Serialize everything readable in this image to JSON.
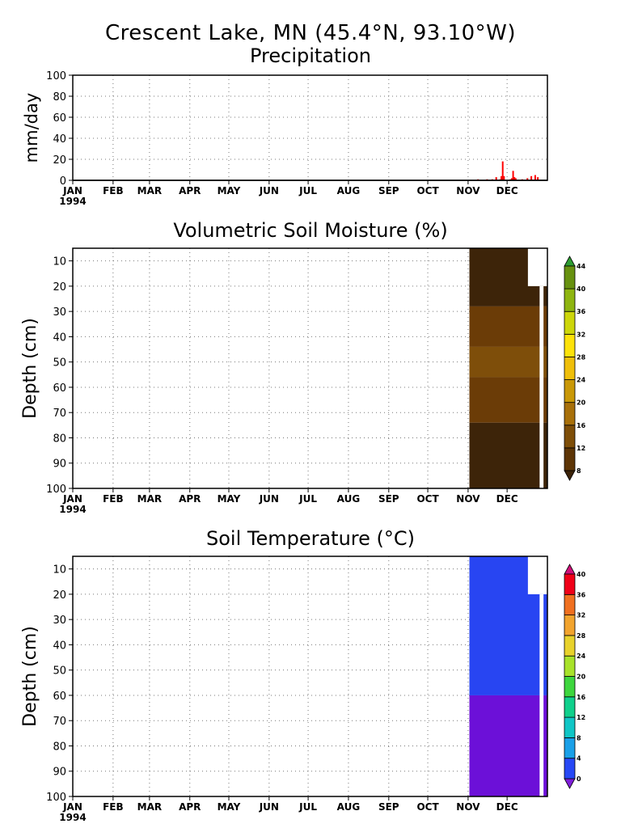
{
  "header": {
    "title": "Crescent Lake, MN (45.4°N, 93.10°W)",
    "subtitle": "Precipitation"
  },
  "months": [
    "JAN",
    "FEB",
    "MAR",
    "APR",
    "MAY",
    "JUN",
    "JUL",
    "AUG",
    "SEP",
    "OCT",
    "NOV",
    "DEC"
  ],
  "year_label": "1994",
  "chart_data": [
    {
      "type": "bar",
      "title": "Precipitation",
      "ylabel": "mm/day",
      "xlabel": "",
      "ylim": [
        0,
        100
      ],
      "yticks": [
        0,
        20,
        40,
        60,
        80,
        100
      ],
      "bar_color": "#ff0000",
      "grid": true,
      "x_day": [
        311,
        318,
        322,
        325,
        328,
        329,
        330,
        331,
        336,
        337,
        338,
        339,
        340,
        345,
        349,
        352,
        355,
        357
      ],
      "values": [
        1,
        1,
        1,
        3,
        1,
        4,
        18,
        4,
        1,
        2,
        9,
        3,
        2,
        1,
        2,
        4,
        5,
        3
      ]
    },
    {
      "type": "heatmap",
      "title": "Volumetric Soil Moisture (%)",
      "ylabel": "Depth (cm)",
      "yticks": [
        10,
        20,
        30,
        40,
        50,
        60,
        70,
        80,
        90,
        100
      ],
      "ylim": [
        5,
        100
      ],
      "data_start_day": 305,
      "colorbar": {
        "labels": [
          "8",
          "12",
          "16",
          "20",
          "24",
          "28",
          "32",
          "36",
          "40",
          "44"
        ],
        "colors": [
          "#3c2309",
          "#5d3506",
          "#7e4e08",
          "#a8700a",
          "#c99807",
          "#efbf0a",
          "#fde20a",
          "#cdd60a",
          "#8eb510",
          "#679110",
          "#2e9d32"
        ]
      },
      "layers": [
        {
          "from_depth": 5,
          "to_depth": 28,
          "color": "#3d2409"
        },
        {
          "from_depth": 28,
          "to_depth": 44,
          "color": "#6b3c07"
        },
        {
          "from_depth": 44,
          "to_depth": 56,
          "color": "#7e4e0a"
        },
        {
          "from_depth": 56,
          "to_depth": 74,
          "color": "#6b3c07"
        },
        {
          "from_depth": 74,
          "to_depth": 100,
          "color": "#3d2409"
        }
      ]
    },
    {
      "type": "heatmap",
      "title": "Soil Temperature (°C)",
      "ylabel": "Depth (cm)",
      "yticks": [
        10,
        20,
        30,
        40,
        50,
        60,
        70,
        80,
        90,
        100
      ],
      "ylim": [
        5,
        100
      ],
      "data_start_day": 305,
      "colorbar": {
        "labels": [
          "0",
          "4",
          "8",
          "12",
          "16",
          "20",
          "24",
          "28",
          "32",
          "36",
          "40"
        ],
        "colors": [
          "#7e1ed8",
          "#2748f5",
          "#1aa0e8",
          "#10c6c6",
          "#10d08c",
          "#3ed63e",
          "#a8e22a",
          "#e8d22c",
          "#f2a42e",
          "#f07020",
          "#f00018",
          "#d0107a"
        ]
      },
      "layers": [
        {
          "from_depth": 5,
          "to_depth": 60,
          "color": "#2845f2"
        },
        {
          "from_depth": 60,
          "to_depth": 100,
          "color": "#6c10d8"
        }
      ]
    }
  ]
}
